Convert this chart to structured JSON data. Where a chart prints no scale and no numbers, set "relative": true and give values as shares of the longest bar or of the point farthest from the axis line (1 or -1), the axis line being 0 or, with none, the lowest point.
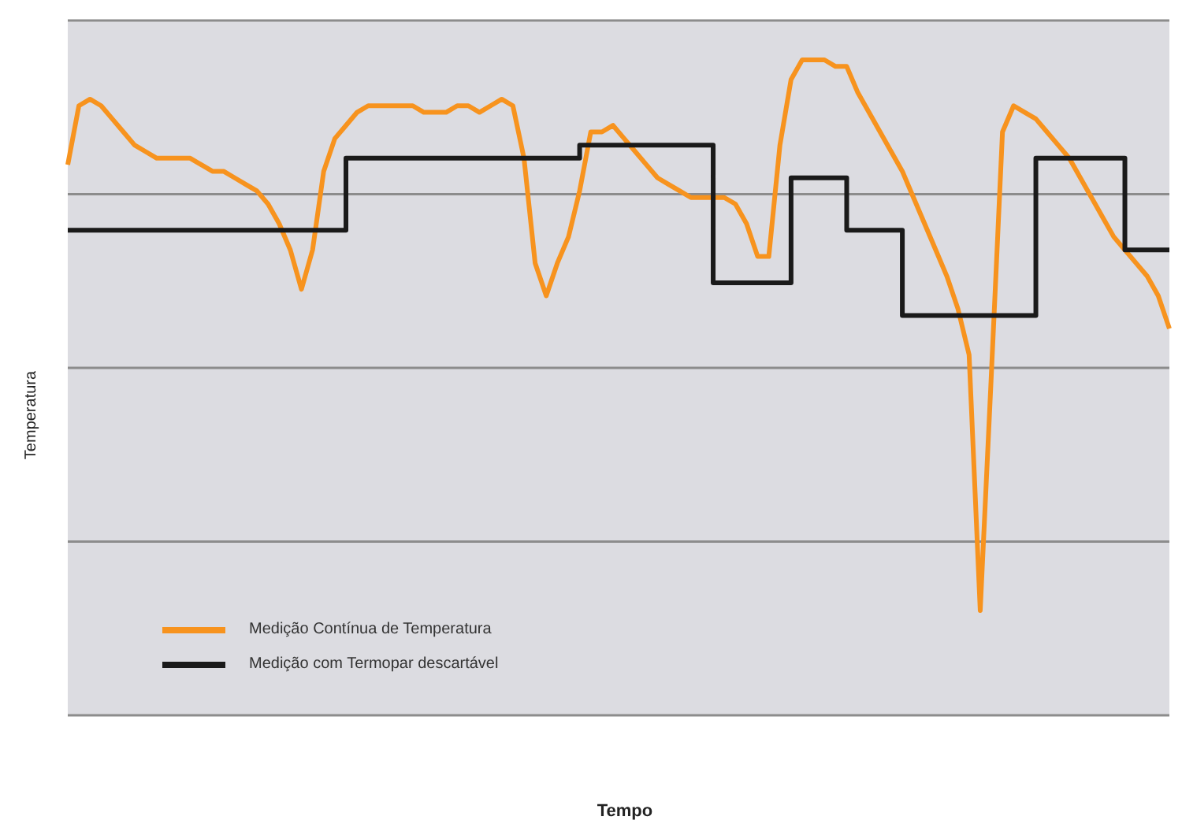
{
  "chart_data": {
    "type": "line",
    "relative": true,
    "xlabel": "Tempo",
    "ylabel": "Temperatura",
    "categories": [
      null,
      null,
      null,
      null,
      null,
      null,
      null,
      null,
      null,
      null,
      null,
      null,
      null,
      null,
      null,
      null,
      null,
      null,
      null,
      null,
      null,
      null,
      null,
      null,
      null,
      null,
      null,
      null,
      null,
      null,
      null,
      null,
      null,
      null,
      null,
      null,
      null,
      null,
      null,
      null,
      null,
      null,
      null,
      null,
      null,
      null,
      null,
      null,
      null,
      null,
      null,
      null,
      null,
      null,
      null,
      null,
      null,
      null,
      null,
      null,
      null,
      null,
      null,
      null,
      null,
      null,
      null,
      null,
      null,
      null,
      null,
      null,
      null,
      null,
      null,
      null,
      null,
      null,
      null,
      null,
      null,
      null,
      null,
      null,
      null,
      null,
      null,
      null,
      null,
      null,
      null,
      null,
      null,
      null,
      null,
      null,
      null,
      null,
      null,
      null
    ],
    "series": [
      {
        "name": "Medição Contínua de Temperatura",
        "color": "#f7931e",
        "values": [
          0.84,
          0.93,
          0.94,
          0.93,
          0.91,
          0.89,
          0.87,
          0.86,
          0.85,
          0.85,
          0.85,
          0.85,
          0.84,
          0.83,
          0.83,
          0.82,
          0.81,
          0.8,
          0.78,
          0.75,
          0.71,
          0.65,
          0.71,
          0.83,
          0.88,
          0.9,
          0.92,
          0.93,
          0.93,
          0.93,
          0.93,
          0.93,
          0.92,
          0.92,
          0.92,
          0.93,
          0.93,
          0.92,
          0.93,
          0.94,
          0.93,
          0.85,
          0.69,
          0.64,
          0.69,
          0.73,
          0.8,
          0.89,
          0.89,
          0.9,
          0.88,
          0.86,
          0.84,
          0.82,
          0.81,
          0.8,
          0.79,
          0.79,
          0.79,
          0.79,
          0.78,
          0.75,
          0.7,
          0.7,
          0.87,
          0.97,
          1.0,
          1.0,
          1.0,
          0.99,
          0.99,
          0.95,
          0.92,
          0.89,
          0.86,
          0.83,
          0.79,
          0.75,
          0.71,
          0.67,
          0.62,
          0.55,
          0.16,
          0.52,
          0.89,
          0.93,
          0.92,
          0.91,
          0.89,
          0.87,
          0.85,
          0.82,
          0.79,
          0.76,
          0.73,
          0.71,
          0.69,
          0.67,
          0.64,
          0.59
        ]
      },
      {
        "name": "Medição com Termopar descartável",
        "type": "step",
        "color": "#1a1a1a",
        "values": [
          0.74,
          0.74,
          0.74,
          0.74,
          0.74,
          0.74,
          0.74,
          0.74,
          0.74,
          0.74,
          0.74,
          0.74,
          0.74,
          0.74,
          0.74,
          0.74,
          0.74,
          0.74,
          0.74,
          0.74,
          0.74,
          0.74,
          0.74,
          0.74,
          0.74,
          0.85,
          0.85,
          0.85,
          0.85,
          0.85,
          0.85,
          0.85,
          0.85,
          0.85,
          0.85,
          0.85,
          0.85,
          0.85,
          0.85,
          0.85,
          0.85,
          0.85,
          0.85,
          0.85,
          0.85,
          0.85,
          0.87,
          0.87,
          0.87,
          0.87,
          0.87,
          0.87,
          0.87,
          0.87,
          0.87,
          0.87,
          0.87,
          0.87,
          0.66,
          0.66,
          0.66,
          0.66,
          0.66,
          0.66,
          0.66,
          0.82,
          0.82,
          0.82,
          0.82,
          0.82,
          0.74,
          0.74,
          0.74,
          0.74,
          0.74,
          0.61,
          0.61,
          0.61,
          0.61,
          0.61,
          0.61,
          0.61,
          0.61,
          0.61,
          0.61,
          0.61,
          0.61,
          0.85,
          0.85,
          0.85,
          0.85,
          0.85,
          0.85,
          0.85,
          0.85,
          0.71,
          0.71,
          0.71,
          0.71,
          0.71
        ]
      }
    ],
    "grid": "y",
    "legend": "bottom left",
    "marker": "none",
    "line_style": "solid"
  }
}
